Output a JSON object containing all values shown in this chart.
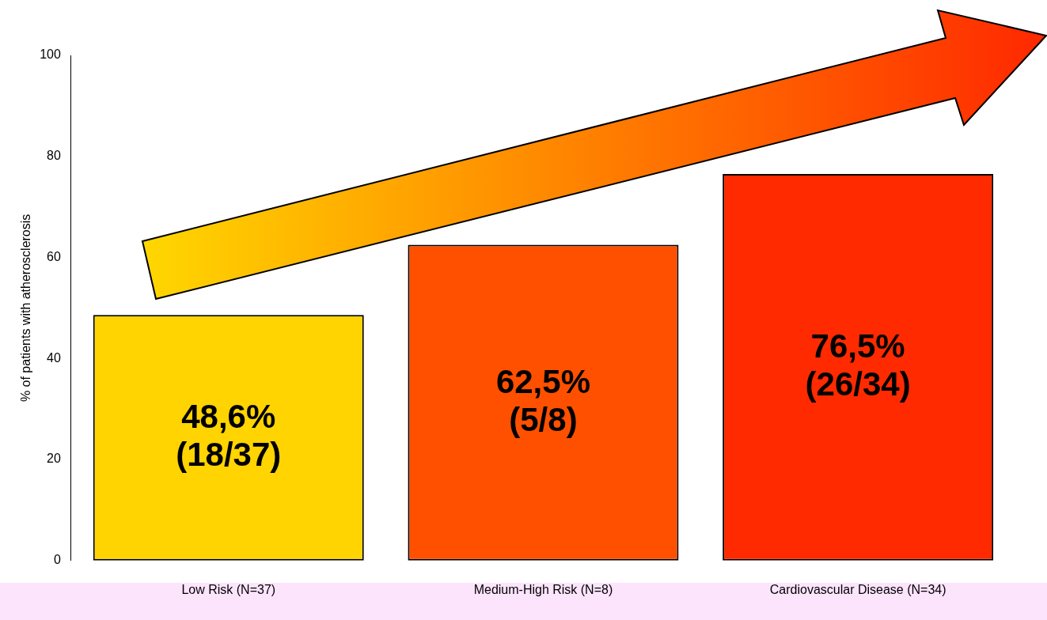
{
  "chart_data": {
    "type": "bar",
    "ylabel": "% of patients with atherosclerosis",
    "categories": [
      "Low Risk (N=37)",
      "Medium-High Risk (N=8)",
      "Cardiovascular Disease (N=34)"
    ],
    "values": [
      48.6,
      62.5,
      76.5
    ],
    "colors": [
      "#ffd400",
      "#ff5000",
      "#ff2a00"
    ],
    "value_labels": [
      "48,6%\n(18/37)",
      "62,5%\n(5/8)",
      "76,5%\n(26/34)"
    ],
    "ylim": [
      0,
      100
    ],
    "yticks": [
      0,
      20,
      40,
      60,
      80,
      100
    ],
    "grid": false,
    "legend": false
  }
}
